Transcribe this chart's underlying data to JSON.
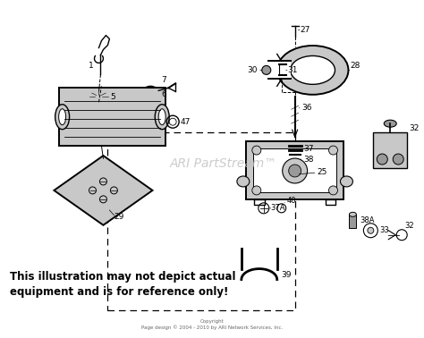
{
  "background_color": "#ffffff",
  "watermark_text": "ARI PartStream™",
  "disclaimer_line1": "This illustration may not depict actual",
  "disclaimer_line2": "equipment and is for reference only!",
  "copyright_text": "Copyright\nPage design © 2004 - 2010 by ARI Network Services, Inc.",
  "figsize": [
    4.74,
    3.78
  ],
  "dpi": 100
}
